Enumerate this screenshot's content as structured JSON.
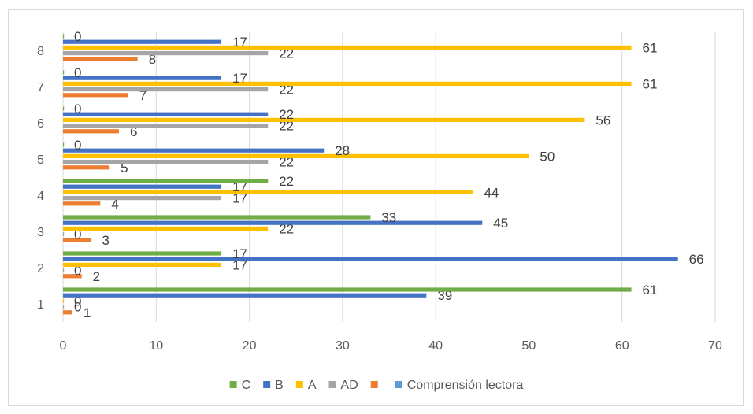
{
  "chart_data": {
    "type": "bar",
    "orientation": "horizontal",
    "categories": [
      "1",
      "2",
      "3",
      "4",
      "5",
      "6",
      "7",
      "8"
    ],
    "series": [
      {
        "name": "Comprensión lectora",
        "values": [
          0,
          0,
          0,
          0,
          0,
          0,
          0,
          0
        ],
        "color": "#5b9bd5",
        "show_labels": false
      },
      {
        "name": "",
        "values": [
          1,
          2,
          3,
          4,
          5,
          6,
          7,
          8
        ],
        "color": "#ed7d31"
      },
      {
        "name": "AD",
        "values": [
          0,
          0,
          0,
          17,
          22,
          22,
          22,
          22
        ],
        "color": "#a5a5a5"
      },
      {
        "name": "A",
        "values": [
          0,
          17,
          22,
          44,
          50,
          56,
          61,
          61
        ],
        "color": "#ffc000"
      },
      {
        "name": "B",
        "values": [
          39,
          66,
          45,
          17,
          28,
          22,
          17,
          17
        ],
        "color": "#4472c4"
      },
      {
        "name": "C",
        "values": [
          61,
          17,
          33,
          22,
          0,
          0,
          0,
          0
        ],
        "color": "#70ad47"
      }
    ],
    "legend_order": [
      "C",
      "B",
      "A",
      "AD",
      "",
      "Comprensión lectora"
    ],
    "legend_position": "bottom",
    "xlim": [
      0,
      70
    ],
    "xticks": [
      0,
      10,
      20,
      30,
      40,
      50,
      60,
      70
    ],
    "grid": "vertical",
    "title": "",
    "xlabel": "",
    "ylabel": ""
  }
}
